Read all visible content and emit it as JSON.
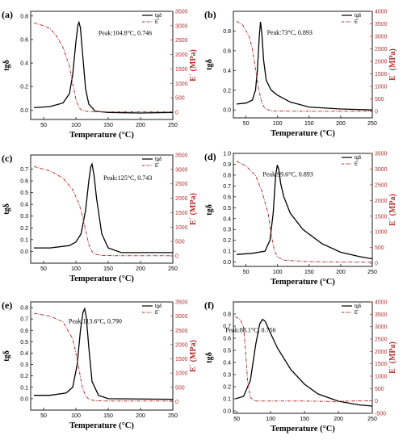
{
  "colors": {
    "tan_delta": "#000000",
    "storage_modulus": "#b03030"
  },
  "chart_data": [
    {
      "panel": "(a)",
      "type": "line",
      "xlabel": "Temperature (°C)",
      "ylabel": "tgδ",
      "y2label": "E´ (MPa)",
      "xlim": [
        30,
        250
      ],
      "ylim": [
        -0.08,
        0.84
      ],
      "y2lim": [
        -250,
        3500
      ],
      "xticks": [
        "50",
        "100",
        "150",
        "200",
        "250"
      ],
      "yticks": [
        "0.0",
        "0.2",
        "0.4",
        "0.6",
        "0.8"
      ],
      "y2ticks": [
        "0",
        "500",
        "1000",
        "1500",
        "2000",
        "2500",
        "3000",
        "3500"
      ],
      "legend": [
        "tgδ",
        "E´"
      ],
      "legend_position": "top-right",
      "annotation": "Peak:104.8°C, 0.746",
      "series": [
        {
          "name": "tgδ",
          "axis": "left",
          "x": [
            35,
            60,
            80,
            90,
            95,
            100,
            103,
            104.8,
            107,
            110,
            115,
            120,
            130,
            150,
            200,
            250
          ],
          "y": [
            0.02,
            0.03,
            0.06,
            0.14,
            0.3,
            0.58,
            0.72,
            0.746,
            0.7,
            0.5,
            0.18,
            0.05,
            -0.01,
            -0.02,
            -0.025,
            -0.02
          ]
        },
        {
          "name": "E´",
          "axis": "right",
          "x": [
            35,
            50,
            60,
            70,
            80,
            90,
            95,
            100,
            105,
            110,
            120,
            150,
            200,
            250
          ],
          "y": [
            3100,
            3000,
            2900,
            2650,
            2250,
            1600,
            1000,
            450,
            150,
            60,
            20,
            15,
            15,
            15
          ]
        }
      ]
    },
    {
      "panel": "(b)",
      "type": "line",
      "xlabel": "Temperature (°C)",
      "ylabel": "tgδ",
      "y2label": "E´ (MPa)",
      "xlim": [
        30,
        250
      ],
      "ylim": [
        -0.08,
        1.0
      ],
      "y2lim": [
        -250,
        4000
      ],
      "xticks": [
        "50",
        "100",
        "150",
        "200",
        "250"
      ],
      "yticks": [
        "0.0",
        "0.2",
        "0.4",
        "0.6",
        "0.8"
      ],
      "y2ticks": [
        "0",
        "500",
        "1000",
        "1500",
        "2000",
        "2500",
        "3000",
        "3500",
        "4000"
      ],
      "legend": [
        "tgδ",
        "E´"
      ],
      "legend_position": "top-right",
      "annotation": "Peak:73°C, 0.893",
      "series": [
        {
          "name": "tgδ",
          "axis": "left",
          "x": [
            35,
            50,
            60,
            65,
            68,
            71,
            73,
            75,
            78,
            82,
            90,
            100,
            120,
            150,
            200,
            250
          ],
          "y": [
            0.06,
            0.07,
            0.1,
            0.2,
            0.4,
            0.75,
            0.893,
            0.78,
            0.5,
            0.3,
            0.2,
            0.15,
            0.08,
            0.03,
            0.01,
            0.0
          ]
        },
        {
          "name": "E´",
          "axis": "right",
          "x": [
            35,
            45,
            55,
            60,
            65,
            70,
            75,
            80,
            90,
            100,
            150,
            200,
            250
          ],
          "y": [
            3600,
            3450,
            3000,
            2500,
            1700,
            900,
            350,
            120,
            30,
            20,
            15,
            15,
            15
          ]
        }
      ]
    },
    {
      "panel": "(c)",
      "type": "line",
      "xlabel": "Temperature (°C)",
      "ylabel": "tgδ",
      "y2label": "E´ (MPa)",
      "xlim": [
        30,
        250
      ],
      "ylim": [
        -0.1,
        0.82
      ],
      "y2lim": [
        -250,
        3500
      ],
      "xticks": [
        "50",
        "100",
        "150",
        "200",
        "250"
      ],
      "yticks": [
        "0.0",
        "0.1",
        "0.2",
        "0.3",
        "0.4",
        "0.5",
        "0.6",
        "0.7"
      ],
      "y2ticks": [
        "0",
        "500",
        "1000",
        "1500",
        "2000",
        "2500",
        "3000",
        "3500"
      ],
      "legend": [
        "tgδ",
        "E´"
      ],
      "legend_position": "top-right",
      "annotation": "Peak:125°C, 0.743",
      "series": [
        {
          "name": "tgδ",
          "axis": "left",
          "x": [
            35,
            60,
            90,
            100,
            108,
            115,
            120,
            123,
            125,
            128,
            132,
            140,
            150,
            170,
            250
          ],
          "y": [
            0.03,
            0.03,
            0.05,
            0.08,
            0.15,
            0.35,
            0.6,
            0.72,
            0.743,
            0.65,
            0.45,
            0.15,
            0.03,
            -0.01,
            -0.01
          ]
        },
        {
          "name": "E´",
          "axis": "right",
          "x": [
            35,
            60,
            80,
            95,
            105,
            110,
            115,
            120,
            125,
            130,
            140,
            160,
            250
          ],
          "y": [
            3100,
            2950,
            2700,
            2300,
            1800,
            1400,
            900,
            400,
            150,
            60,
            20,
            10,
            10
          ]
        }
      ]
    },
    {
      "panel": "(d)",
      "type": "line",
      "xlabel": "Temperature (°C)",
      "ylabel": "tgδ",
      "y2label": "E´ (MPa)",
      "xlim": [
        30,
        250
      ],
      "ylim": [
        -0.04,
        1.0
      ],
      "y2lim": [
        -100,
        3500
      ],
      "xticks": [
        "50",
        "100",
        "150",
        "200",
        "250"
      ],
      "yticks": [
        "0.0",
        "0.1",
        "0.2",
        "0.3",
        "0.4",
        "0.5",
        "0.6",
        "0.7",
        "0.8",
        "0.9",
        "1.0"
      ],
      "y2ticks": [
        "0",
        "500",
        "1000",
        "1500",
        "2000",
        "2500",
        "3000",
        "3500"
      ],
      "legend": [
        "tgδ",
        "E´"
      ],
      "legend_position": "top-right",
      "annotation": "Peak:99.6°C, 0.893",
      "series": [
        {
          "name": "tgδ",
          "axis": "left",
          "x": [
            35,
            60,
            80,
            88,
            93,
            97,
            99.6,
            102,
            105,
            110,
            120,
            140,
            170,
            200,
            230,
            250
          ],
          "y": [
            0.07,
            0.08,
            0.1,
            0.2,
            0.45,
            0.8,
            0.893,
            0.85,
            0.72,
            0.6,
            0.45,
            0.3,
            0.17,
            0.09,
            0.05,
            0.03
          ]
        },
        {
          "name": "E´",
          "axis": "right",
          "x": [
            35,
            50,
            65,
            75,
            85,
            90,
            95,
            100,
            110,
            150,
            200,
            250
          ],
          "y": [
            3250,
            3100,
            2800,
            2300,
            1600,
            900,
            400,
            200,
            100,
            50,
            40,
            35
          ]
        }
      ]
    },
    {
      "panel": "(e)",
      "type": "line",
      "xlabel": "Temperature (°C)",
      "ylabel": "tgδ",
      "y2label": "E´ (MPa)",
      "xlim": [
        30,
        250
      ],
      "ylim": [
        -0.1,
        0.85
      ],
      "y2lim": [
        -300,
        3500
      ],
      "xticks": [
        "50",
        "100",
        "150",
        "200",
        "250"
      ],
      "yticks": [
        "0.0",
        "0.1",
        "0.2",
        "0.3",
        "0.4",
        "0.5",
        "0.6",
        "0.7",
        "0.8"
      ],
      "y2ticks": [
        "0",
        "500",
        "1000",
        "1500",
        "2000",
        "2500",
        "3000",
        "3500"
      ],
      "legend": [
        "tgδ",
        "E´"
      ],
      "legend_position": "top-right",
      "annotation": "Peak:113.6°C, 0.790",
      "series": [
        {
          "name": "tgδ",
          "axis": "left",
          "x": [
            35,
            60,
            85,
            95,
            102,
            107,
            111,
            113.6,
            116,
            120,
            125,
            135,
            150,
            250
          ],
          "y": [
            0.03,
            0.03,
            0.05,
            0.1,
            0.3,
            0.6,
            0.76,
            0.79,
            0.72,
            0.45,
            0.15,
            0.03,
            0.0,
            -0.005
          ]
        },
        {
          "name": "E´",
          "axis": "right",
          "x": [
            35,
            60,
            80,
            95,
            100,
            105,
            110,
            115,
            120,
            130,
            150,
            250
          ],
          "y": [
            3100,
            3000,
            2800,
            2200,
            1700,
            1100,
            500,
            200,
            80,
            30,
            20,
            20
          ]
        }
      ]
    },
    {
      "panel": "(f)",
      "type": "line",
      "xlabel": "Temperature (°C)",
      "ylabel": "tgδ",
      "y2label": "E´ (MPa)",
      "xlim": [
        45,
        250
      ],
      "ylim": [
        -0.02,
        0.9
      ],
      "y2lim": [
        -500,
        4000
      ],
      "xticks": [
        "50",
        "100",
        "150",
        "200",
        "250"
      ],
      "yticks": [
        "0.0",
        "0.1",
        "0.2",
        "0.3",
        "0.4",
        "0.5",
        "0.6",
        "0.7",
        "0.8"
      ],
      "y2ticks": [
        "-500",
        "0",
        "500",
        "1000",
        "1500",
        "2000",
        "2500",
        "3000",
        "3500",
        "4000"
      ],
      "legend": [
        "tgδ",
        "E´"
      ],
      "legend_position": "top-right",
      "annotation": "Peak:88.1°C, 0.756",
      "series": [
        {
          "name": "tgδ",
          "axis": "left",
          "x": [
            48,
            60,
            70,
            78,
            84,
            88.1,
            92,
            100,
            110,
            130,
            150,
            170,
            200,
            230,
            250
          ],
          "y": [
            0.1,
            0.12,
            0.25,
            0.55,
            0.72,
            0.756,
            0.74,
            0.64,
            0.52,
            0.34,
            0.22,
            0.14,
            0.08,
            0.05,
            0.04
          ]
        },
        {
          "name": "E´",
          "axis": "right",
          "x": [
            48,
            55,
            60,
            63,
            66,
            70,
            75,
            80,
            100,
            150,
            190,
            195,
            200,
            220,
            250
          ],
          "y": [
            3400,
            3300,
            3000,
            2000,
            800,
            150,
            20,
            0,
            -5,
            -5,
            -20,
            -40,
            -10,
            0,
            5
          ]
        }
      ]
    }
  ]
}
